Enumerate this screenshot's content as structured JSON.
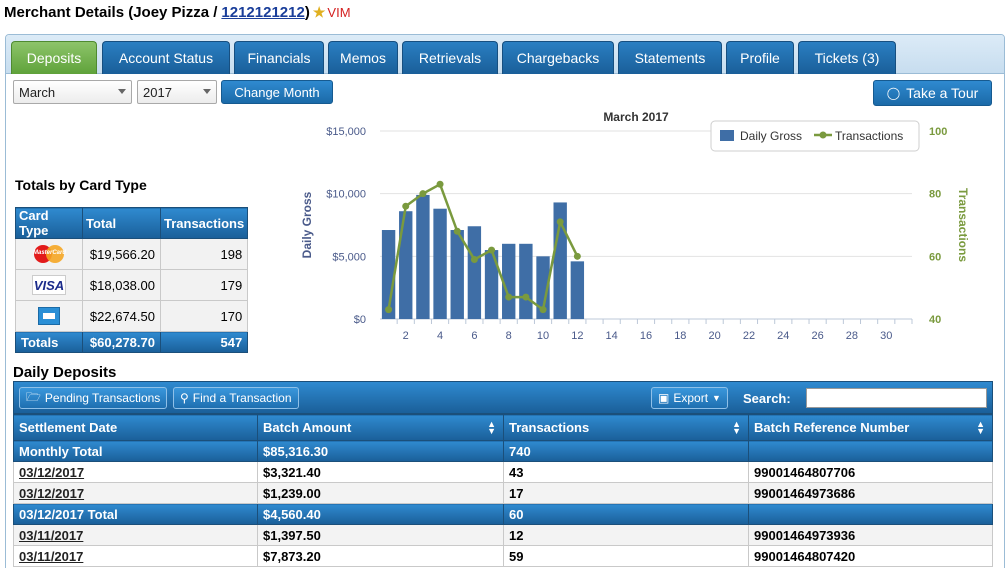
{
  "header": {
    "title_prefix": "Merchant Details (Joey Pizza / ",
    "merchant_id": "1212121212",
    "title_suffix": ")",
    "badge": "VIM"
  },
  "tabs": [
    {
      "label": "Deposits",
      "active": true
    },
    {
      "label": "Account Status"
    },
    {
      "label": "Financials"
    },
    {
      "label": "Memos"
    },
    {
      "label": "Retrievals"
    },
    {
      "label": "Chargebacks"
    },
    {
      "label": "Statements"
    },
    {
      "label": "Profile"
    },
    {
      "label": "Tickets (3)"
    }
  ],
  "filters": {
    "month": "March",
    "year": "2017",
    "change_month_label": "Change Month",
    "tour_label": "Take a Tour"
  },
  "card_totals": {
    "title": "Totals by Card Type",
    "headers": [
      "Card Type",
      "Total",
      "Transactions"
    ],
    "rows": [
      {
        "card": "mastercard-icon",
        "total": "$19,566.20",
        "transactions": "198"
      },
      {
        "card": "visa-icon",
        "total": "$18,038.00",
        "transactions": "179"
      },
      {
        "card": "amex-icon",
        "total": "$22,674.50",
        "transactions": "170"
      }
    ],
    "totals": {
      "label": "Totals",
      "total": "$60,278.70",
      "transactions": "547"
    }
  },
  "chart_data": {
    "type": "bar",
    "title": "March 2017",
    "ylabel": "Daily Gross",
    "y2label": "Transactions",
    "ylim": [
      0,
      15000
    ],
    "y2lim": [
      40,
      100
    ],
    "yticks": [
      "$0",
      "$5,000",
      "$10,000",
      "$15,000"
    ],
    "y2ticks": [
      "40",
      "60",
      "80",
      "100"
    ],
    "xticks": [
      2,
      4,
      6,
      8,
      10,
      12,
      14,
      16,
      18,
      20,
      22,
      24,
      26,
      28,
      30
    ],
    "x": [
      1,
      2,
      3,
      4,
      5,
      6,
      7,
      8,
      9,
      10,
      11,
      12
    ],
    "legend": "top-right",
    "series": [
      {
        "name": "Daily Gross",
        "type": "bar",
        "color": "#3f6ea6",
        "values": [
          7100,
          8600,
          9900,
          8800,
          7100,
          7400,
          5500,
          6000,
          6000,
          5000,
          9300,
          4600
        ]
      },
      {
        "name": "Transactions",
        "type": "line",
        "color": "#7a9a3e",
        "values": [
          43,
          76,
          80,
          83,
          68,
          59,
          62,
          47,
          47,
          43,
          71,
          60
        ]
      }
    ]
  },
  "daily_deposits": {
    "title": "Daily Deposits",
    "pending_label": "Pending Transactions",
    "find_label": "Find a Transaction",
    "export_label": "Export",
    "search_label": "Search:",
    "headers": [
      "Settlement Date",
      "Batch Amount",
      "Transactions",
      "Batch Reference Number"
    ],
    "rows": [
      {
        "type": "group",
        "date": "Monthly Total",
        "amount": "$85,316.30",
        "transactions": "740",
        "ref": ""
      },
      {
        "type": "row",
        "date": "03/12/2017",
        "amount": "$3,321.40",
        "transactions": "43",
        "ref": "99001464807706"
      },
      {
        "type": "row",
        "date": "03/12/2017",
        "amount": "$1,239.00",
        "transactions": "17",
        "ref": "99001464973686"
      },
      {
        "type": "group",
        "date": "03/12/2017 Total",
        "amount": "$4,560.40",
        "transactions": "60",
        "ref": ""
      },
      {
        "type": "row",
        "date": "03/11/2017",
        "amount": "$1,397.50",
        "transactions": "12",
        "ref": "99001464973936"
      },
      {
        "type": "row",
        "date": "03/11/2017",
        "amount": "$7,873.20",
        "transactions": "59",
        "ref": "99001464807420"
      }
    ]
  }
}
